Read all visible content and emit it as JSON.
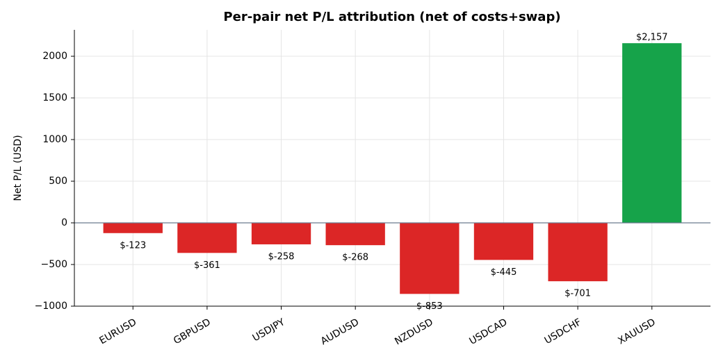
{
  "chart_data": {
    "type": "bar",
    "title": "Per-pair net P/L attribution (net of costs+swap)",
    "y_label": "Net P/L (USD)",
    "categories": [
      "EURUSD",
      "GBPUSD",
      "USDJPY",
      "AUDUSD",
      "NZDUSD",
      "USDCAD",
      "USDCHF",
      "XAUUSD"
    ],
    "values": [
      -123,
      -361,
      -258,
      -268,
      -853,
      -445,
      -701,
      2157
    ],
    "value_labels": [
      "$-123",
      "$-361",
      "$-258",
      "$-268",
      "$-853",
      "$-445",
      "$-701",
      "$2,157"
    ],
    "colors": [
      "#dc2626",
      "#dc2626",
      "#dc2626",
      "#dc2626",
      "#dc2626",
      "#dc2626",
      "#dc2626",
      "#16a34a"
    ],
    "ylim": [
      -1000,
      2317
    ],
    "yticks": [
      {
        "value": -1000,
        "label": "−1000"
      },
      {
        "value": -500,
        "label": "−500"
      },
      0,
      500,
      1000,
      1500,
      2000
    ],
    "grid": true
  }
}
